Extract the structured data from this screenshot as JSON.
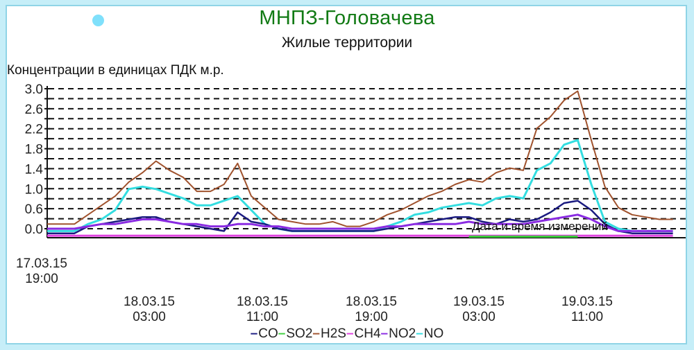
{
  "title": "МНПЗ-Головачева",
  "subtitle": "Жилые территории",
  "ylabel": "Концентрации в единицах ПДК м.р.",
  "xaxis_title": "Дата и время измерений",
  "yticks": [
    "3.0",
    "2.6",
    "2.2",
    "1.8",
    "1.4",
    "1.0",
    "0.6",
    "0.0"
  ],
  "xticks": [
    {
      "date": "17.03.15",
      "time": "19:00"
    },
    {
      "date": "18.03.15",
      "time": "03:00"
    },
    {
      "date": "18.03.15",
      "time": "11:00"
    },
    {
      "date": "18.03.15",
      "time": "19:00"
    },
    {
      "date": "19.03.15",
      "time": "03:00"
    },
    {
      "date": "19.03.15",
      "time": "11:00"
    }
  ],
  "legend": [
    {
      "label": "CO",
      "color": "#1a1a80"
    },
    {
      "label": "SO2",
      "color": "#3ccf3c"
    },
    {
      "label": "H2S",
      "color": "#a0522d"
    },
    {
      "label": "CH4",
      "color": "#e040e0"
    },
    {
      "label": "NO2",
      "color": "#8a2be2"
    },
    {
      "label": "NO",
      "color": "#33dde0"
    }
  ],
  "chart_data": {
    "type": "line",
    "title": "МНПЗ-Головачева",
    "subtitle": "Жилые территории",
    "xlabel": "Дата и время измерений",
    "ylabel": "Концентрации в единицах ПДК м.р.",
    "ylim": [
      0,
      3.0
    ],
    "grid": true,
    "legend_position": "bottom",
    "x_start": "17.03.15 19:00",
    "x_step_hours": 1,
    "x": [
      "17.03.15 19:00",
      "20:00",
      "21:00",
      "22:00",
      "23:00",
      "18.03.15 00:00",
      "01:00",
      "02:00",
      "03:00",
      "04:00",
      "05:00",
      "06:00",
      "07:00",
      "08:00",
      "09:00",
      "10:00",
      "11:00",
      "12:00",
      "13:00",
      "14:00",
      "15:00",
      "16:00",
      "17:00",
      "18:00",
      "19:00",
      "20:00",
      "21:00",
      "22:00",
      "23:00",
      "19.03.15 00:00",
      "01:00",
      "02:00",
      "03:00",
      "04:00",
      "05:00",
      "06:00",
      "07:00",
      "08:00",
      "09:00",
      "10:00",
      "11:00",
      "12:00",
      "13:00",
      "14:00",
      "15:00",
      "16:00",
      "17:00"
    ],
    "series": [
      {
        "name": "H2S",
        "color": "#a0522d",
        "values": [
          0.1,
          0.1,
          0.1,
          0.3,
          0.5,
          0.7,
          1.0,
          1.2,
          1.45,
          1.25,
          1.1,
          0.8,
          0.8,
          0.95,
          1.4,
          0.7,
          0.45,
          0.2,
          0.15,
          0.1,
          0.1,
          0.15,
          0.05,
          0.05,
          0.15,
          0.3,
          0.4,
          0.55,
          0.7,
          0.8,
          0.95,
          1.05,
          1.0,
          1.2,
          1.3,
          1.25,
          2.15,
          2.4,
          2.75,
          2.95,
          1.9,
          0.9,
          0.45,
          0.3,
          0.25,
          0.2,
          0.2
        ]
      },
      {
        "name": "NO",
        "color": "#33dde0",
        "values": [
          -0.05,
          -0.05,
          -0.05,
          0.1,
          0.2,
          0.4,
          0.85,
          0.9,
          0.85,
          0.75,
          0.65,
          0.5,
          0.5,
          0.6,
          0.7,
          0.4,
          0.1,
          0.0,
          -0.05,
          -0.05,
          -0.05,
          -0.05,
          -0.05,
          -0.05,
          -0.05,
          0.05,
          0.15,
          0.3,
          0.35,
          0.45,
          0.5,
          0.55,
          0.5,
          0.65,
          0.7,
          0.65,
          1.25,
          1.4,
          1.8,
          1.9,
          0.95,
          0.15,
          0.0,
          -0.05,
          -0.05,
          -0.05,
          -0.05
        ]
      },
      {
        "name": "CO",
        "color": "#1a1a80",
        "values": [
          -0.1,
          -0.1,
          -0.1,
          0.05,
          0.1,
          0.15,
          0.2,
          0.25,
          0.25,
          0.15,
          0.1,
          0.05,
          0.0,
          -0.05,
          0.35,
          0.15,
          0.1,
          0.0,
          -0.05,
          -0.05,
          -0.05,
          -0.05,
          -0.05,
          -0.05,
          -0.05,
          0.0,
          0.05,
          0.1,
          0.15,
          0.2,
          0.25,
          0.25,
          0.15,
          0.1,
          0.2,
          0.15,
          0.2,
          0.35,
          0.55,
          0.6,
          0.4,
          0.1,
          -0.05,
          -0.1,
          -0.1,
          -0.1,
          -0.1
        ]
      },
      {
        "name": "NO2",
        "color": "#8a2be2",
        "values": [
          0.0,
          0.0,
          0.0,
          0.05,
          0.1,
          0.1,
          0.15,
          0.2,
          0.2,
          0.15,
          0.1,
          0.1,
          0.05,
          0.05,
          0.1,
          0.1,
          0.05,
          0.05,
          0.0,
          0.0,
          0.0,
          0.0,
          0.0,
          0.0,
          0.0,
          0.05,
          0.05,
          0.1,
          0.1,
          0.1,
          0.1,
          0.15,
          0.1,
          0.1,
          0.1,
          0.1,
          0.15,
          0.2,
          0.25,
          0.3,
          0.2,
          0.05,
          -0.05,
          -0.05,
          -0.05,
          -0.05,
          -0.05
        ]
      },
      {
        "name": "CH4",
        "color": "#e040e0",
        "values": [
          -0.15,
          -0.15,
          -0.15,
          -0.15,
          -0.15,
          -0.15,
          -0.15,
          -0.15,
          -0.15,
          -0.15,
          -0.15,
          -0.15,
          -0.15,
          -0.15,
          -0.15,
          -0.15,
          -0.15,
          -0.15,
          -0.15,
          -0.15,
          -0.15,
          -0.15,
          -0.15,
          -0.15,
          -0.15,
          -0.15,
          -0.15,
          -0.15,
          -0.15,
          -0.15,
          -0.15,
          -0.15,
          -0.15,
          -0.15,
          -0.15,
          -0.15,
          -0.15,
          -0.15,
          -0.15,
          -0.15,
          -0.15,
          -0.15,
          -0.15,
          -0.15,
          -0.15,
          -0.15,
          -0.15
        ]
      },
      {
        "name": "SO2",
        "color": "#3ccf3c",
        "values": [
          null,
          null,
          null,
          null,
          null,
          null,
          null,
          null,
          null,
          null,
          null,
          null,
          null,
          null,
          null,
          null,
          null,
          null,
          null,
          null,
          null,
          null,
          null,
          null,
          null,
          null,
          null,
          null,
          null,
          null,
          null,
          -0.17,
          -0.17,
          -0.17,
          -0.17,
          -0.17,
          -0.17,
          -0.17,
          -0.17,
          -0.17,
          null,
          null,
          null,
          null,
          null,
          null,
          null
        ]
      }
    ]
  }
}
